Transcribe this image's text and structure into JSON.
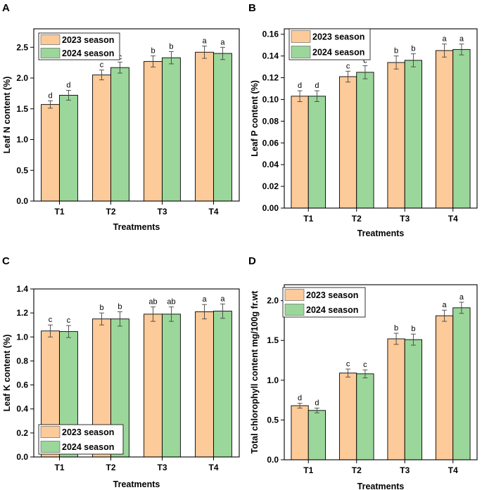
{
  "colors": {
    "season_2023": "#FDCA99",
    "season_2024": "#9BD79A",
    "error_bar": "#444444",
    "axis": "#000000"
  },
  "chart_data": [
    {
      "panel": "A",
      "type": "bar",
      "categories": [
        "T1",
        "T2",
        "T3",
        "T4"
      ],
      "xlabel": "Treatments",
      "ylabel": "Leaf N content (%)",
      "ylim": [
        0,
        2.8
      ],
      "yticks": [
        0.0,
        0.5,
        1.0,
        1.5,
        2.0,
        2.5
      ],
      "tick_decimals": 1,
      "legend_position": "top-left",
      "series": [
        {
          "name": "2023 season",
          "values": [
            1.57,
            2.05,
            2.27,
            2.42
          ],
          "errors": [
            0.06,
            0.08,
            0.09,
            0.1
          ],
          "labels": [
            "d",
            "c",
            "b",
            "a"
          ]
        },
        {
          "name": "2024 season",
          "values": [
            1.72,
            2.17,
            2.33,
            2.4
          ],
          "errors": [
            0.08,
            0.09,
            0.1,
            0.1
          ],
          "labels": [
            "d",
            "c",
            "b",
            "a"
          ]
        }
      ]
    },
    {
      "panel": "B",
      "type": "bar",
      "categories": [
        "T1",
        "T2",
        "T3",
        "T4"
      ],
      "xlabel": "Treatments",
      "ylabel": "Leaf P content (%)",
      "ylim": [
        0,
        0.165
      ],
      "yticks": [
        0.0,
        0.02,
        0.04,
        0.06,
        0.08,
        0.1,
        0.12,
        0.14,
        0.16
      ],
      "tick_decimals": 2,
      "legend_position": "top-left",
      "series": [
        {
          "name": "2023 season",
          "values": [
            0.103,
            0.121,
            0.134,
            0.145
          ],
          "errors": [
            0.005,
            0.005,
            0.006,
            0.006
          ],
          "labels": [
            "d",
            "c",
            "b",
            "a"
          ]
        },
        {
          "name": "2024 season",
          "values": [
            0.103,
            0.125,
            0.136,
            0.146
          ],
          "errors": [
            0.005,
            0.006,
            0.006,
            0.005
          ],
          "labels": [
            "d",
            "c",
            "b",
            "a"
          ]
        }
      ]
    },
    {
      "panel": "C",
      "type": "bar",
      "categories": [
        "T1",
        "T2",
        "T3",
        "T4"
      ],
      "xlabel": "Treatments",
      "ylabel": "Leaf K content (%)",
      "ylim": [
        0,
        1.4
      ],
      "yticks": [
        0.0,
        0.2,
        0.4,
        0.6,
        0.8,
        1.0,
        1.2,
        1.4
      ],
      "tick_decimals": 1,
      "legend_position": "bottom-left",
      "series": [
        {
          "name": "2023 season",
          "values": [
            1.05,
            1.15,
            1.19,
            1.21
          ],
          "errors": [
            0.05,
            0.05,
            0.06,
            0.06
          ],
          "labels": [
            "c",
            "b",
            "ab",
            "a"
          ]
        },
        {
          "name": "2024 season",
          "values": [
            1.045,
            1.15,
            1.19,
            1.215
          ],
          "errors": [
            0.05,
            0.06,
            0.06,
            0.06
          ],
          "labels": [
            "c",
            "b",
            "ab",
            "a"
          ]
        }
      ]
    },
    {
      "panel": "D",
      "type": "bar",
      "categories": [
        "T1",
        "T2",
        "T3",
        "T4"
      ],
      "xlabel": "Treatments",
      "ylabel": "Total chlorophyll content mg/100g fr.wt",
      "ylim": [
        0,
        2.2
      ],
      "yticks": [
        0.0,
        0.5,
        1.0,
        1.5,
        2.0
      ],
      "tick_decimals": 1,
      "legend_position": "top-left",
      "series": [
        {
          "name": "2023 season",
          "values": [
            0.68,
            1.09,
            1.52,
            1.81
          ],
          "errors": [
            0.03,
            0.05,
            0.07,
            0.07
          ],
          "labels": [
            "d",
            "c",
            "b",
            "a"
          ]
        },
        {
          "name": "2024 season",
          "values": [
            0.62,
            1.08,
            1.51,
            1.91
          ],
          "errors": [
            0.03,
            0.05,
            0.07,
            0.07
          ],
          "labels": [
            "d",
            "c",
            "b",
            "a"
          ]
        }
      ]
    }
  ]
}
